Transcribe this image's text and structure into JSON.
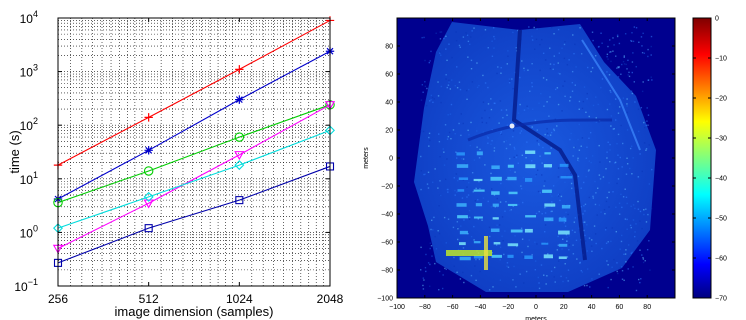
{
  "chart_data": [
    {
      "type": "line",
      "title": "",
      "xlabel": "image dimension (samples)",
      "ylabel": "time (s)",
      "x": [
        256,
        512,
        1024,
        2048
      ],
      "xticks": [
        "256",
        "512",
        "1024",
        "2048"
      ],
      "xscale": "log2",
      "yscale": "log10",
      "ylim": [
        0.1,
        10000
      ],
      "yticks": [
        {
          "base": "10",
          "exp": "−1"
        },
        {
          "base": "10",
          "exp": "0"
        },
        {
          "base": "10",
          "exp": "1"
        },
        {
          "base": "10",
          "exp": "2"
        },
        {
          "base": "10",
          "exp": "3"
        },
        {
          "base": "10",
          "exp": "4"
        }
      ],
      "grid": true,
      "series": [
        {
          "color": "#ff0000",
          "marker": "plus",
          "values": [
            18,
            140,
            1100,
            9000
          ]
        },
        {
          "color": "#0000cc",
          "marker": "asterisk",
          "values": [
            4.2,
            34,
            300,
            2400
          ]
        },
        {
          "color": "#00cc00",
          "marker": "circle",
          "values": [
            3.6,
            14,
            60,
            240
          ]
        },
        {
          "color": "#ff00ff",
          "marker": "triangle",
          "values": [
            0.5,
            3.5,
            28,
            240
          ]
        },
        {
          "color": "#00dddd",
          "marker": "diamond",
          "values": [
            1.2,
            4.6,
            18,
            80
          ]
        },
        {
          "color": "#0000aa",
          "marker": "square",
          "values": [
            0.27,
            1.2,
            4.0,
            17
          ]
        }
      ]
    },
    {
      "type": "heatmap",
      "title": "",
      "xlabel": "meters",
      "ylabel": "meters",
      "xlim": [
        -100,
        100
      ],
      "ylim": [
        -100,
        100
      ],
      "xticks": [
        "−100",
        "−80",
        "−60",
        "−40",
        "−20",
        "0",
        "20",
        "40",
        "60",
        "80"
      ],
      "yticks": [
        "−100",
        "−80",
        "−60",
        "−40",
        "−20",
        "0",
        "20",
        "40",
        "60",
        "80"
      ],
      "colorbar": {
        "range": [
          -70,
          0
        ],
        "ticks": [
          "0",
          "−10",
          "−20",
          "−30",
          "−40",
          "−50",
          "−60",
          "−70"
        ],
        "colormap": "jet"
      }
    }
  ]
}
